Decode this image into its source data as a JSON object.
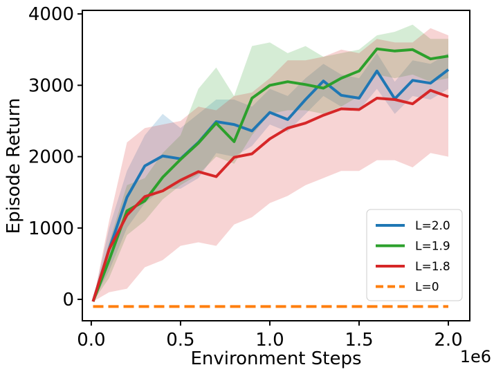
{
  "chart_data": {
    "type": "line",
    "xlabel": "Environment Steps",
    "ylabel": "Episode Return",
    "x_offset_label": "1e6",
    "xlim": [
      -0.05,
      2.12
    ],
    "ylim": [
      -300,
      4050
    ],
    "xticks": [
      0.0,
      0.5,
      1.0,
      1.5,
      2.0
    ],
    "xtick_labels": [
      "0.0",
      "0.5",
      "1.0",
      "1.5",
      "2.0"
    ],
    "yticks": [
      0,
      1000,
      2000,
      3000,
      4000
    ],
    "ytick_labels": [
      "0",
      "1000",
      "2000",
      "3000",
      "4000"
    ],
    "legend_position": "lower-right",
    "grid": false,
    "x": [
      0.01,
      0.1,
      0.2,
      0.3,
      0.4,
      0.5,
      0.6,
      0.7,
      0.8,
      0.9,
      1.0,
      1.1,
      1.2,
      1.3,
      1.4,
      1.5,
      1.6,
      1.7,
      1.8,
      1.9,
      2.0
    ],
    "series": [
      {
        "name": "L=2.0",
        "color": "#1f77b4",
        "dashed": false,
        "values": [
          -30,
          700,
          1430,
          1870,
          2010,
          1970,
          2200,
          2490,
          2450,
          2360,
          2620,
          2520,
          2800,
          3060,
          2860,
          2820,
          3200,
          2810,
          3070,
          3030,
          3220
        ],
        "lower": [
          -30,
          400,
          1000,
          1350,
          1550,
          1550,
          1700,
          2050,
          2000,
          2150,
          2450,
          2350,
          2600,
          2850,
          2700,
          2650,
          2950,
          2600,
          2850,
          2800,
          2950
        ],
        "upper": [
          -30,
          1000,
          1800,
          2300,
          2600,
          2400,
          2600,
          2800,
          2800,
          2700,
          2950,
          2850,
          3100,
          3300,
          3150,
          3100,
          3450,
          3050,
          3350,
          3300,
          3450
        ]
      },
      {
        "name": "L=1.9",
        "color": "#2ca02c",
        "dashed": false,
        "values": [
          -30,
          550,
          1240,
          1380,
          1710,
          1960,
          2190,
          2470,
          2210,
          2820,
          3000,
          3050,
          3010,
          2960,
          3100,
          3200,
          3510,
          3480,
          3500,
          3370,
          3410
        ],
        "lower": [
          -30,
          300,
          900,
          1100,
          1400,
          1600,
          1750,
          2000,
          1900,
          2300,
          2600,
          2650,
          2650,
          2600,
          2700,
          2850,
          3150,
          3100,
          3150,
          3050,
          3100
        ],
        "upper": [
          -30,
          800,
          1600,
          1700,
          2050,
          2300,
          2950,
          3250,
          2850,
          3550,
          3600,
          3450,
          3550,
          3400,
          3450,
          3500,
          3700,
          3750,
          3850,
          3650,
          3650
        ]
      },
      {
        "name": "L=1.8",
        "color": "#d62728",
        "dashed": false,
        "values": [
          -30,
          700,
          1180,
          1440,
          1520,
          1670,
          1790,
          1720,
          1990,
          2040,
          2250,
          2400,
          2470,
          2580,
          2670,
          2660,
          2820,
          2800,
          2740,
          2930,
          2840
        ],
        "lower": [
          -30,
          100,
          150,
          450,
          550,
          750,
          800,
          750,
          1050,
          1150,
          1350,
          1450,
          1600,
          1700,
          1800,
          1800,
          1950,
          1950,
          1850,
          2050,
          2000
        ],
        "upper": [
          -30,
          1100,
          2200,
          2400,
          2450,
          2500,
          2700,
          2650,
          2850,
          2900,
          3100,
          3350,
          3350,
          3400,
          3500,
          3450,
          3650,
          3600,
          3600,
          3800,
          3700
        ]
      },
      {
        "name": "L=0",
        "color": "#ff7f0e",
        "dashed": true,
        "values": [
          -100,
          -100,
          -100,
          -100,
          -100,
          -100,
          -100,
          -100,
          -100,
          -100,
          -100,
          -100,
          -100,
          -100,
          -100,
          -100,
          -100,
          -100,
          -100,
          -100,
          -100
        ]
      }
    ]
  }
}
